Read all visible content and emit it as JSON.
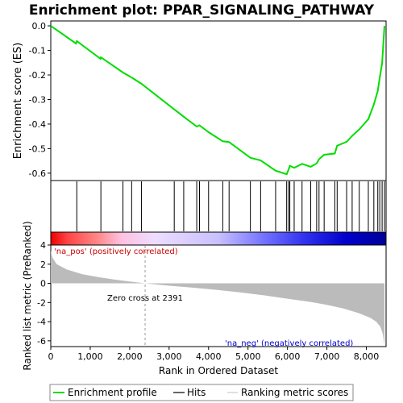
{
  "chart_data": [
    {
      "type": "line",
      "title": "Enrichment plot: PPAR_SIGNALING_PATHWAY",
      "ylabel": "Enrichment score (ES)",
      "xlim": [
        0,
        8500
      ],
      "ylim": [
        -0.63,
        0.02
      ],
      "yticks": [
        "0.0",
        "-0.1",
        "-0.2",
        "-0.3",
        "-0.4",
        "-0.5",
        "-0.6"
      ],
      "ytick_values": [
        0.0,
        -0.1,
        -0.2,
        -0.3,
        -0.4,
        -0.5,
        -0.6
      ],
      "series": [
        {
          "name": "Enrichment profile",
          "color": "#00dd00",
          "x": [
            0,
            640,
            660,
            1260,
            1270,
            1830,
            2050,
            2300,
            3130,
            3370,
            3700,
            3770,
            4000,
            4360,
            4520,
            5060,
            5320,
            5700,
            5980,
            6030,
            6060,
            6170,
            6370,
            6590,
            6740,
            6800,
            6930,
            7200,
            7260,
            7500,
            7640,
            7820,
            8050,
            8190,
            8290,
            8340,
            8400,
            8460
          ],
          "y": [
            0.0,
            -0.072,
            -0.062,
            -0.134,
            -0.128,
            -0.19,
            -0.21,
            -0.236,
            -0.34,
            -0.37,
            -0.41,
            -0.405,
            -0.433,
            -0.47,
            -0.473,
            -0.537,
            -0.548,
            -0.59,
            -0.604,
            -0.585,
            -0.57,
            -0.578,
            -0.562,
            -0.574,
            -0.56,
            -0.543,
            -0.525,
            -0.52,
            -0.488,
            -0.472,
            -0.448,
            -0.422,
            -0.38,
            -0.32,
            -0.265,
            -0.21,
            -0.152,
            0.0
          ]
        }
      ]
    },
    {
      "type": "hits",
      "series": [
        {
          "name": "Hits",
          "color": "#000000",
          "x": [
            660,
            1270,
            1830,
            2050,
            2300,
            3130,
            3370,
            3700,
            3770,
            4000,
            4360,
            4520,
            5060,
            5320,
            5700,
            5980,
            6030,
            6060,
            6170,
            6370,
            6590,
            6740,
            6800,
            6930,
            7200,
            7260,
            7500,
            7640,
            7820,
            8050,
            8190,
            8290,
            8340,
            8400,
            8460
          ]
        }
      ]
    },
    {
      "type": "area",
      "ylabel": "Ranked list metric (PreRanked)",
      "xlabel": "Rank in Ordered Dataset",
      "xlim": [
        0,
        8500
      ],
      "ylim": [
        -6.6,
        4.0
      ],
      "xticks": [
        "0",
        "1,000",
        "2,000",
        "3,000",
        "4,000",
        "5,000",
        "6,000",
        "7,000",
        "8,000"
      ],
      "xtick_values": [
        0,
        1000,
        2000,
        3000,
        4000,
        5000,
        6000,
        7000,
        8000
      ],
      "yticks": [
        "4",
        "2",
        "0",
        "-2",
        "-4",
        "-6"
      ],
      "ytick_values": [
        4,
        2,
        0,
        -2,
        -4,
        -6
      ],
      "series": [
        {
          "name": "Ranking metric scores",
          "color": "#bbbbbb",
          "x": [
            0,
            40,
            150,
            400,
            800,
            1200,
            1600,
            2000,
            2391,
            3000,
            3600,
            4200,
            4800,
            5400,
            6000,
            6600,
            7000,
            7400,
            7800,
            8100,
            8250,
            8350,
            8420,
            8460
          ],
          "y": [
            3.4,
            2.7,
            2.0,
            1.45,
            0.95,
            0.65,
            0.4,
            0.2,
            0.0,
            -0.25,
            -0.45,
            -0.68,
            -0.95,
            -1.25,
            -1.6,
            -1.95,
            -2.25,
            -2.6,
            -3.1,
            -3.6,
            -4.0,
            -4.5,
            -5.3,
            -6.5
          ]
        }
      ],
      "annotations": {
        "pos": "'na_pos' (positively correlated)",
        "zero": "Zero cross at 2391",
        "neg": "'na_neg' (negatively correlated)"
      },
      "zero_cross": 2391
    }
  ]
}
